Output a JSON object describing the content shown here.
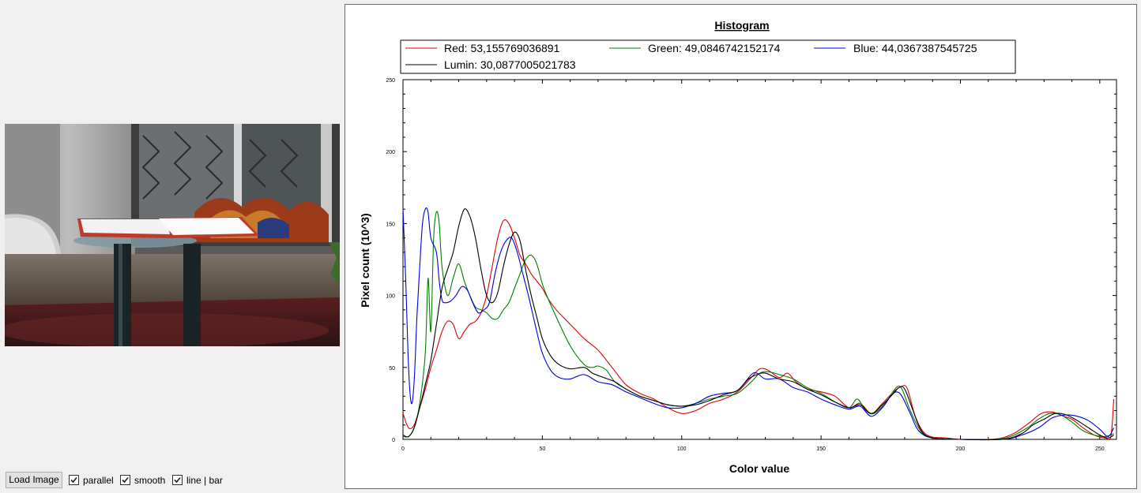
{
  "controls": {
    "load_button": "Load Image",
    "checkboxes": [
      {
        "label": "parallel",
        "checked": true
      },
      {
        "label": "smooth",
        "checked": true
      },
      {
        "label": "line | bar",
        "checked": true
      }
    ]
  },
  "chart_data": {
    "type": "line",
    "title": "Histogram",
    "xlabel": "Color value",
    "ylabel": "Pixel count (10^3)",
    "xlim": [
      0,
      256
    ],
    "ylim": [
      0,
      250
    ],
    "x_ticks": [
      0,
      50,
      100,
      150,
      200,
      250
    ],
    "y_ticks": [
      0,
      50,
      100,
      150,
      200,
      250
    ],
    "legend_position": "top",
    "series": [
      {
        "name": "Red: 53,155769036891",
        "color": "#e00000",
        "points": [
          [
            0,
            18
          ],
          [
            2,
            8
          ],
          [
            4,
            10
          ],
          [
            6,
            22
          ],
          [
            8,
            35
          ],
          [
            10,
            50
          ],
          [
            12,
            62
          ],
          [
            14,
            75
          ],
          [
            16,
            82
          ],
          [
            18,
            80
          ],
          [
            20,
            70
          ],
          [
            22,
            75
          ],
          [
            24,
            80
          ],
          [
            26,
            82
          ],
          [
            28,
            88
          ],
          [
            30,
            100
          ],
          [
            32,
            120
          ],
          [
            34,
            140
          ],
          [
            36,
            152
          ],
          [
            38,
            150
          ],
          [
            40,
            140
          ],
          [
            42,
            128
          ],
          [
            44,
            122
          ],
          [
            46,
            115
          ],
          [
            48,
            110
          ],
          [
            50,
            105
          ],
          [
            52,
            98
          ],
          [
            55,
            90
          ],
          [
            60,
            80
          ],
          [
            65,
            70
          ],
          [
            70,
            62
          ],
          [
            75,
            50
          ],
          [
            80,
            38
          ],
          [
            85,
            32
          ],
          [
            90,
            28
          ],
          [
            95,
            22
          ],
          [
            100,
            18
          ],
          [
            105,
            20
          ],
          [
            110,
            25
          ],
          [
            115,
            28
          ],
          [
            120,
            33
          ],
          [
            125,
            43
          ],
          [
            128,
            49
          ],
          [
            131,
            48
          ],
          [
            135,
            43
          ],
          [
            138,
            46
          ],
          [
            141,
            40
          ],
          [
            145,
            35
          ],
          [
            150,
            33
          ],
          [
            155,
            30
          ],
          [
            160,
            22
          ],
          [
            164,
            25
          ],
          [
            168,
            18
          ],
          [
            172,
            25
          ],
          [
            176,
            33
          ],
          [
            179,
            37
          ],
          [
            181,
            35
          ],
          [
            184,
            15
          ],
          [
            188,
            3
          ],
          [
            195,
            1
          ],
          [
            200,
            0
          ],
          [
            210,
            0
          ],
          [
            215,
            1
          ],
          [
            220,
            5
          ],
          [
            225,
            12
          ],
          [
            229,
            18
          ],
          [
            233,
            19
          ],
          [
            237,
            16
          ],
          [
            240,
            14
          ],
          [
            244,
            8
          ],
          [
            248,
            3
          ],
          [
            252,
            1
          ],
          [
            254,
            2
          ],
          [
            255,
            28
          ]
        ]
      },
      {
        "name": "Green: 49,0846742152174",
        "color": "#008000",
        "points": [
          [
            0,
            2
          ],
          [
            2,
            2
          ],
          [
            4,
            8
          ],
          [
            6,
            25
          ],
          [
            8,
            60
          ],
          [
            9,
            112
          ],
          [
            10,
            75
          ],
          [
            11,
            140
          ],
          [
            12,
            158
          ],
          [
            13,
            150
          ],
          [
            14,
            120
          ],
          [
            16,
            100
          ],
          [
            18,
            112
          ],
          [
            20,
            122
          ],
          [
            22,
            110
          ],
          [
            24,
            100
          ],
          [
            26,
            92
          ],
          [
            28,
            90
          ],
          [
            30,
            88
          ],
          [
            32,
            84
          ],
          [
            34,
            84
          ],
          [
            36,
            90
          ],
          [
            38,
            95
          ],
          [
            40,
            105
          ],
          [
            42,
            115
          ],
          [
            44,
            125
          ],
          [
            46,
            128
          ],
          [
            48,
            122
          ],
          [
            50,
            108
          ],
          [
            52,
            98
          ],
          [
            55,
            85
          ],
          [
            60,
            65
          ],
          [
            65,
            52
          ],
          [
            68,
            50
          ],
          [
            70,
            51
          ],
          [
            73,
            48
          ],
          [
            76,
            40
          ],
          [
            80,
            35
          ],
          [
            85,
            30
          ],
          [
            90,
            27
          ],
          [
            95,
            24
          ],
          [
            100,
            23
          ],
          [
            105,
            25
          ],
          [
            110,
            28
          ],
          [
            115,
            30
          ],
          [
            120,
            32
          ],
          [
            125,
            40
          ],
          [
            128,
            46
          ],
          [
            131,
            47
          ],
          [
            135,
            45
          ],
          [
            140,
            42
          ],
          [
            145,
            36
          ],
          [
            150,
            32
          ],
          [
            155,
            26
          ],
          [
            160,
            22
          ],
          [
            163,
            28
          ],
          [
            166,
            20
          ],
          [
            169,
            18
          ],
          [
            173,
            25
          ],
          [
            177,
            36
          ],
          [
            179,
            35
          ],
          [
            182,
            20
          ],
          [
            186,
            5
          ],
          [
            190,
            1
          ],
          [
            200,
            0
          ],
          [
            212,
            0
          ],
          [
            218,
            2
          ],
          [
            224,
            8
          ],
          [
            228,
            14
          ],
          [
            232,
            18
          ],
          [
            236,
            17
          ],
          [
            240,
            12
          ],
          [
            244,
            6
          ],
          [
            248,
            3
          ],
          [
            252,
            2
          ],
          [
            255,
            4
          ]
        ]
      },
      {
        "name": "Blue: 44,0367387545725",
        "color": "#0000e0",
        "points": [
          [
            0,
            160
          ],
          [
            1,
            110
          ],
          [
            2,
            50
          ],
          [
            3,
            25
          ],
          [
            4,
            40
          ],
          [
            5,
            85
          ],
          [
            6,
            120
          ],
          [
            7,
            150
          ],
          [
            8,
            160
          ],
          [
            9,
            158
          ],
          [
            10,
            140
          ],
          [
            12,
            130
          ],
          [
            13,
            110
          ],
          [
            14,
            97
          ],
          [
            15,
            95
          ],
          [
            17,
            96
          ],
          [
            19,
            100
          ],
          [
            21,
            106
          ],
          [
            23,
            104
          ],
          [
            25,
            95
          ],
          [
            27,
            88
          ],
          [
            29,
            90
          ],
          [
            31,
            95
          ],
          [
            33,
            115
          ],
          [
            35,
            130
          ],
          [
            37,
            138
          ],
          [
            39,
            140
          ],
          [
            41,
            130
          ],
          [
            43,
            115
          ],
          [
            45,
            100
          ],
          [
            48,
            75
          ],
          [
            50,
            60
          ],
          [
            53,
            48
          ],
          [
            56,
            43
          ],
          [
            60,
            42
          ],
          [
            65,
            45
          ],
          [
            70,
            40
          ],
          [
            75,
            38
          ],
          [
            80,
            33
          ],
          [
            85,
            29
          ],
          [
            90,
            25
          ],
          [
            95,
            22
          ],
          [
            100,
            22
          ],
          [
            105,
            25
          ],
          [
            110,
            30
          ],
          [
            115,
            32
          ],
          [
            120,
            34
          ],
          [
            125,
            45
          ],
          [
            127,
            46
          ],
          [
            130,
            42
          ],
          [
            135,
            42
          ],
          [
            140,
            36
          ],
          [
            145,
            33
          ],
          [
            150,
            28
          ],
          [
            155,
            24
          ],
          [
            160,
            21
          ],
          [
            164,
            23
          ],
          [
            168,
            16
          ],
          [
            172,
            22
          ],
          [
            175,
            30
          ],
          [
            177,
            33
          ],
          [
            179,
            30
          ],
          [
            182,
            18
          ],
          [
            185,
            6
          ],
          [
            190,
            1
          ],
          [
            200,
            0
          ],
          [
            215,
            0
          ],
          [
            222,
            3
          ],
          [
            228,
            8
          ],
          [
            233,
            15
          ],
          [
            238,
            17
          ],
          [
            242,
            16
          ],
          [
            246,
            13
          ],
          [
            250,
            7
          ],
          [
            253,
            2
          ],
          [
            255,
            8
          ]
        ]
      },
      {
        "name": "Lumin: 30,0877005021783",
        "color": "#000000",
        "points": [
          [
            0,
            3
          ],
          [
            2,
            2
          ],
          [
            4,
            8
          ],
          [
            6,
            22
          ],
          [
            8,
            38
          ],
          [
            10,
            55
          ],
          [
            12,
            80
          ],
          [
            14,
            105
          ],
          [
            16,
            118
          ],
          [
            18,
            130
          ],
          [
            20,
            148
          ],
          [
            22,
            160
          ],
          [
            24,
            155
          ],
          [
            26,
            140
          ],
          [
            28,
            118
          ],
          [
            30,
            100
          ],
          [
            32,
            95
          ],
          [
            34,
            102
          ],
          [
            36,
            120
          ],
          [
            38,
            135
          ],
          [
            40,
            144
          ],
          [
            42,
            138
          ],
          [
            44,
            118
          ],
          [
            46,
            100
          ],
          [
            48,
            85
          ],
          [
            50,
            70
          ],
          [
            53,
            58
          ],
          [
            56,
            52
          ],
          [
            60,
            49
          ],
          [
            65,
            50
          ],
          [
            68,
            46
          ],
          [
            72,
            43
          ],
          [
            76,
            40
          ],
          [
            80,
            35
          ],
          [
            85,
            30
          ],
          [
            90,
            27
          ],
          [
            95,
            24
          ],
          [
            100,
            23
          ],
          [
            105,
            24
          ],
          [
            110,
            27
          ],
          [
            115,
            31
          ],
          [
            120,
            34
          ],
          [
            124,
            42
          ],
          [
            127,
            45
          ],
          [
            130,
            46
          ],
          [
            135,
            42
          ],
          [
            140,
            40
          ],
          [
            145,
            35
          ],
          [
            150,
            31
          ],
          [
            155,
            26
          ],
          [
            160,
            22
          ],
          [
            164,
            24
          ],
          [
            168,
            18
          ],
          [
            172,
            24
          ],
          [
            176,
            32
          ],
          [
            178,
            36
          ],
          [
            180,
            35
          ],
          [
            183,
            20
          ],
          [
            186,
            6
          ],
          [
            190,
            1
          ],
          [
            200,
            0
          ],
          [
            215,
            0
          ],
          [
            222,
            4
          ],
          [
            226,
            10
          ],
          [
            230,
            14
          ],
          [
            234,
            18
          ],
          [
            238,
            17
          ],
          [
            242,
            13
          ],
          [
            246,
            8
          ],
          [
            250,
            3
          ],
          [
            253,
            1
          ],
          [
            255,
            3
          ]
        ]
      }
    ]
  }
}
